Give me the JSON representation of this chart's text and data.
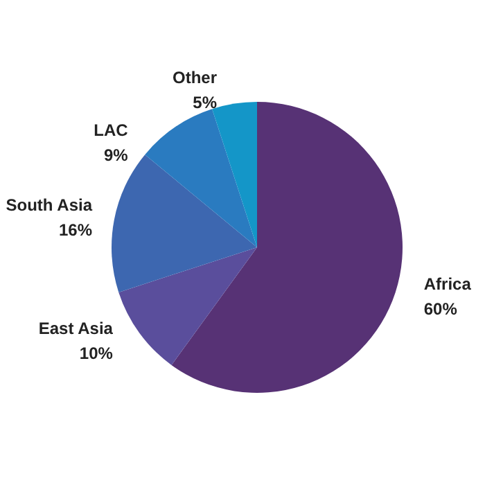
{
  "chart_data": {
    "type": "pie",
    "categories": [
      "Africa",
      "East Asia",
      "South Asia",
      "LAC",
      "Other"
    ],
    "values": [
      60,
      10,
      16,
      9,
      5
    ],
    "colors": [
      "#573275",
      "#5a4e9c",
      "#3d67b0",
      "#2a7bc0",
      "#1496c8"
    ],
    "value_labels": [
      "60%",
      "10%",
      "16%",
      "9%",
      "5%"
    ],
    "legend": false
  }
}
